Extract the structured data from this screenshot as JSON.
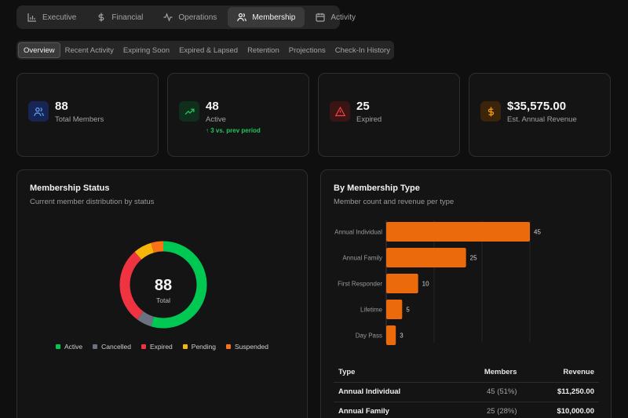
{
  "topnav": [
    {
      "label": "Executive",
      "icon": "bar-chart-icon",
      "active": false
    },
    {
      "label": "Financial",
      "icon": "dollar-icon",
      "active": false
    },
    {
      "label": "Operations",
      "icon": "activity-pulse-icon",
      "active": false
    },
    {
      "label": "Membership",
      "icon": "users-icon",
      "active": true
    },
    {
      "label": "Activity",
      "icon": "calendar-icon",
      "active": false
    }
  ],
  "subnav": [
    {
      "label": "Overview",
      "active": true
    },
    {
      "label": "Recent Activity",
      "active": false
    },
    {
      "label": "Expiring Soon",
      "active": false
    },
    {
      "label": "Expired & Lapsed",
      "active": false
    },
    {
      "label": "Retention",
      "active": false
    },
    {
      "label": "Projections",
      "active": false
    },
    {
      "label": "Check-In History",
      "active": false
    }
  ],
  "stats": [
    {
      "value": "88",
      "label": "Total Members",
      "icon": "users-icon",
      "color": "#3b82f6"
    },
    {
      "value": "48",
      "label": "Active",
      "icon": "trending-up-icon",
      "color": "#22c55e",
      "trend": "3 vs. prev period"
    },
    {
      "value": "25",
      "label": "Expired",
      "icon": "alert-triangle-icon",
      "color": "#ef4444"
    },
    {
      "value": "$35,575.00",
      "label": "Est. Annual Revenue",
      "icon": "dollar-icon",
      "color": "#f59e0b"
    }
  ],
  "status_panel": {
    "title": "Membership Status",
    "subtitle": "Current member distribution by status",
    "center_value": "88",
    "center_label": "Total"
  },
  "type_panel": {
    "title": "By Membership Type",
    "subtitle": "Member count and revenue per type"
  },
  "chart_data": [
    {
      "type": "pie",
      "donut": true,
      "center_value": 88,
      "segments": [
        {
          "name": "Active",
          "value": 48,
          "color": "#00c853"
        },
        {
          "name": "Cancelled",
          "value": 5,
          "color": "#6b7280"
        },
        {
          "name": "Expired",
          "value": 25,
          "color": "#ef3340"
        },
        {
          "name": "Pending",
          "value": 6,
          "color": "#f5b50a"
        },
        {
          "name": "Suspended",
          "value": 4,
          "color": "#f97316"
        }
      ],
      "legend_position": "bottom"
    },
    {
      "type": "bar",
      "orientation": "horizontal",
      "categories": [
        "Annual Individual",
        "Annual Family",
        "First Responder",
        "Lifetime",
        "Day Pass"
      ],
      "values": [
        45,
        25,
        10,
        5,
        3
      ],
      "color": "#ea6a0c",
      "data_labels": true,
      "grid": true
    }
  ],
  "types_table": {
    "headers": [
      "Type",
      "Members",
      "Revenue"
    ],
    "rows": [
      {
        "type": "Annual Individual",
        "members": "45 (51%)",
        "revenue": "$11,250.00"
      },
      {
        "type": "Annual Family",
        "members": "25 (28%)",
        "revenue": "$10,000.00"
      }
    ]
  }
}
